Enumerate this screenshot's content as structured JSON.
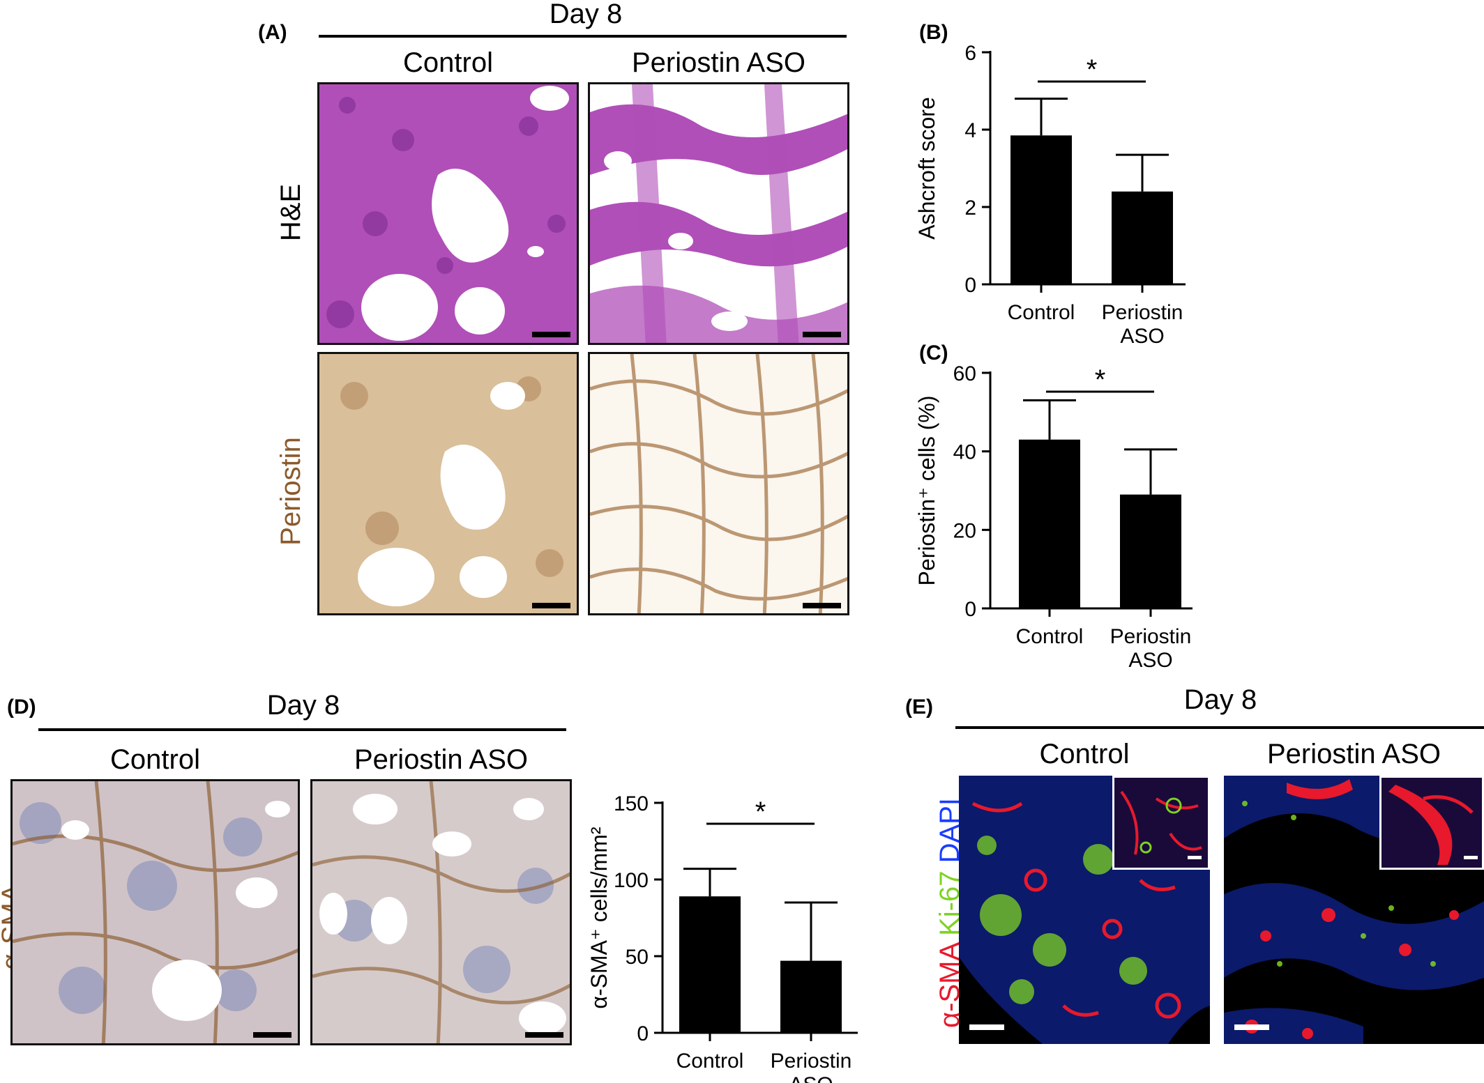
{
  "panel_a": {
    "letter": "(A)",
    "day": "Day 8",
    "col_control": "Control",
    "col_aso": "Periostin ASO",
    "row_he": "H&E",
    "row_periostin": "Periostin",
    "colors": {
      "he_bg": "#b04fb8",
      "he_dark": "#7a2a8e",
      "periostin_bg": "#d9bf9a",
      "periostin_dark": "#a07040",
      "row_periostin_label": "#8b5a2b"
    }
  },
  "panel_b": {
    "letter": "(B)",
    "chart_data": {
      "type": "bar",
      "categories": [
        "Control",
        "Periostin ASO"
      ],
      "category_lines": [
        [
          "Control"
        ],
        [
          "Periostin",
          "ASO"
        ]
      ],
      "values": [
        3.85,
        2.4
      ],
      "errors": [
        0.95,
        0.95
      ],
      "ylabel": "Ashcroft score",
      "ylim": [
        0,
        6
      ],
      "yticks": [
        0,
        2,
        4,
        6
      ],
      "ytick_labels": [
        "0",
        "2",
        "4",
        "6"
      ],
      "significance": "*"
    }
  },
  "panel_c": {
    "letter": "(C)",
    "chart_data": {
      "type": "bar",
      "categories": [
        "Control",
        "Periostin ASO"
      ],
      "category_lines": [
        [
          "Control"
        ],
        [
          "Periostin",
          "ASO"
        ]
      ],
      "values": [
        43,
        29
      ],
      "errors": [
        10,
        11.5
      ],
      "ylabel": "Periostin⁺ cells (%)",
      "ylim": [
        0,
        60
      ],
      "yticks": [
        0,
        20,
        40,
        60
      ],
      "ytick_labels": [
        "0",
        "20",
        "40",
        "60"
      ],
      "significance": "*"
    }
  },
  "panel_d": {
    "letter": "(D)",
    "day": "Day 8",
    "col_control": "Control",
    "col_aso": "Periostin ASO",
    "row_label": "α-SMA",
    "chart_data": {
      "type": "bar",
      "categories": [
        "Control",
        "Periostin ASO"
      ],
      "category_lines": [
        [
          "Control"
        ],
        [
          "Periostin",
          "ASO"
        ]
      ],
      "values": [
        89,
        47
      ],
      "errors": [
        18,
        38
      ],
      "ylabel": "α-SMA⁺ cells/mm²",
      "ylim": [
        0,
        150
      ],
      "yticks": [
        0,
        50,
        100,
        150
      ],
      "ytick_labels": [
        "0",
        "50",
        "100",
        "150"
      ],
      "significance": "*"
    }
  },
  "panel_e": {
    "letter": "(E)",
    "day": "Day 8",
    "col_control": "Control",
    "col_aso": "Periostin ASO",
    "row_label_sma": "α-SMA",
    "row_label_ki67": "Ki-67",
    "row_label_dapi": "DAPI",
    "colors": {
      "sma": "#e8192c",
      "ki67": "#7ed321",
      "dapi": "#1a3cff"
    }
  }
}
